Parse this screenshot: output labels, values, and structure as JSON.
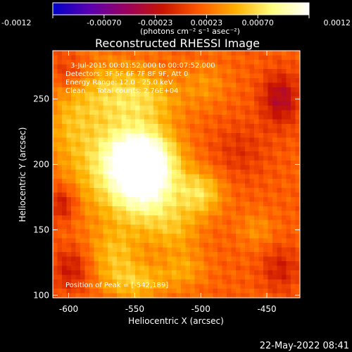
{
  "chart_data": {
    "type": "heatmap",
    "title": "Reconstructed RHESSI Image",
    "xlabel": "Heliocentric X (arcsec)",
    "ylabel": "Heliocentric Y (arcsec)",
    "xlim": [
      -612,
      -425
    ],
    "ylim": [
      98,
      287
    ],
    "xticks": [
      -600,
      -550,
      -500,
      -450
    ],
    "xtick_labels": [
      "-600",
      "-550",
      "-500",
      "-450"
    ],
    "yticks": [
      100,
      150,
      200,
      250
    ],
    "ytick_labels": [
      "100",
      "150",
      "200",
      "250"
    ],
    "colorbar": {
      "range": [
        -0.0012,
        0.0012
      ],
      "tick_labels": [
        "-0.0012",
        "-0.00070",
        "-0.00023",
        "0.00023",
        "0.00070",
        "0.0012"
      ],
      "units_label": "(photons cm⁻² s⁻¹ asec⁻²)",
      "colors": [
        "#0000c8",
        "#5a00b0",
        "#9a0060",
        "#c81400",
        "#ff5a00",
        "#ffb000",
        "#ffff80",
        "#ffffff"
      ]
    },
    "annotations": [
      "3-Jul-2015 00:01:52.000 to 00:07:52.000",
      "Detectors: 3F 5F 6F 7F 8F 9F, Att 0",
      "Energy Range: 12.0 - 25.0 keV",
      "Clean     Total counts: 2.76E+04"
    ],
    "peak_label": "Position of Peak = [-542,189]",
    "grid": false,
    "sources": [
      {
        "x": -543,
        "y": 189,
        "amp": 0.0011,
        "sx": 18,
        "sy": 22
      },
      {
        "x": -548,
        "y": 207,
        "amp": 0.0006,
        "sx": 18,
        "sy": 15
      },
      {
        "x": -578,
        "y": 200,
        "amp": 0.00035,
        "sx": 22,
        "sy": 30
      },
      {
        "x": -570,
        "y": 255,
        "amp": 0.00035,
        "sx": 25,
        "sy": 18
      },
      {
        "x": -540,
        "y": 250,
        "amp": 0.0003,
        "sx": 20,
        "sy": 14
      },
      {
        "x": -500,
        "y": 178,
        "amp": 0.0005,
        "sx": 12,
        "sy": 12
      },
      {
        "x": -496,
        "y": 262,
        "amp": 0.0002,
        "sx": 12,
        "sy": 12
      },
      {
        "x": -565,
        "y": 132,
        "amp": 0.00035,
        "sx": 14,
        "sy": 14
      },
      {
        "x": -549,
        "y": 110,
        "amp": 0.0004,
        "sx": 18,
        "sy": 10
      },
      {
        "x": -512,
        "y": 120,
        "amp": 0.00025,
        "sx": 12,
        "sy": 10
      },
      {
        "x": -458,
        "y": 150,
        "amp": 0.0002,
        "sx": 10,
        "sy": 10
      },
      {
        "x": -600,
        "y": 230,
        "amp": 0.0002,
        "sx": 12,
        "sy": 18
      },
      {
        "x": -520,
        "y": 150,
        "amp": 0.0003,
        "sx": 14,
        "sy": 14
      },
      {
        "x": -470,
        "y": 210,
        "amp": -0.0002,
        "sx": 15,
        "sy": 15
      },
      {
        "x": -440,
        "y": 250,
        "amp": -0.0005,
        "sx": 10,
        "sy": 14
      },
      {
        "x": -605,
        "y": 170,
        "amp": -0.0004,
        "sx": 8,
        "sy": 10
      },
      {
        "x": -598,
        "y": 120,
        "amp": -0.00035,
        "sx": 10,
        "sy": 12
      },
      {
        "x": -440,
        "y": 120,
        "amp": -0.0003,
        "sx": 10,
        "sy": 12
      },
      {
        "x": -600,
        "y": 270,
        "amp": -0.00025,
        "sx": 10,
        "sy": 10
      }
    ]
  },
  "footer": {
    "date": "22-May-2022 08:41"
  }
}
